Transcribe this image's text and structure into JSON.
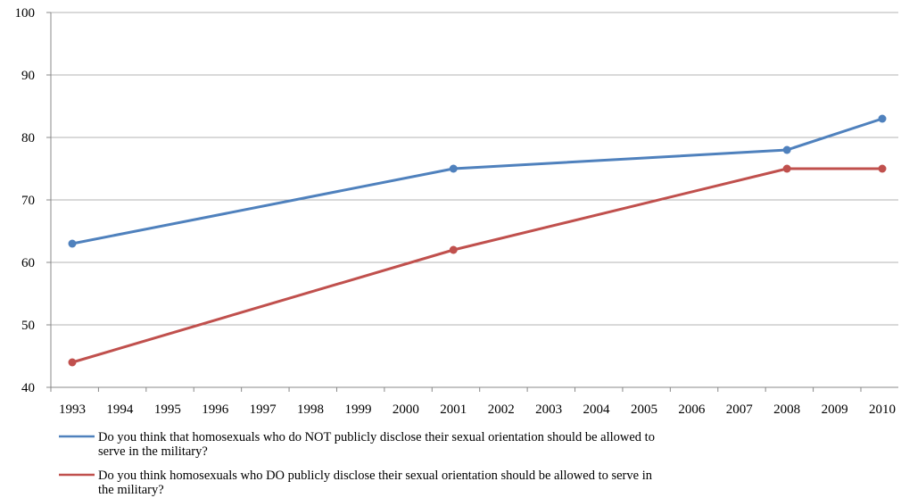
{
  "chart_data": {
    "type": "line",
    "categories": [
      "1993",
      "1994",
      "1995",
      "1996",
      "1997",
      "1998",
      "1999",
      "2000",
      "2001",
      "2002",
      "2003",
      "2004",
      "2005",
      "2006",
      "2007",
      "2008",
      "2009",
      "2010"
    ],
    "ylim": [
      40,
      100
    ],
    "y_ticks": [
      40,
      50,
      60,
      70,
      80,
      90,
      100
    ],
    "grid": "horizontal",
    "legend_position": "bottom",
    "series": [
      {
        "name": "Do you think that homosexuals who do NOT publicly disclose their sexual orientation should be allowed to serve in the military?",
        "legend_lines": [
          "Do you think that homosexuals who do NOT publicly disclose their sexual orientation should be allowed to",
          "serve in the military?"
        ],
        "color": "#4f81bd",
        "points": [
          {
            "x": "1993",
            "y": 63
          },
          {
            "x": "2001",
            "y": 75
          },
          {
            "x": "2008",
            "y": 78
          },
          {
            "x": "2010",
            "y": 83
          }
        ]
      },
      {
        "name": "Do you think homosexuals who DO publicly disclose their sexual orientation should be allowed to serve in the military?",
        "legend_lines": [
          "Do you think homosexuals who DO publicly disclose their sexual orientation should be allowed to serve in",
          "the military?"
        ],
        "color": "#c0504d",
        "points": [
          {
            "x": "1993",
            "y": 44
          },
          {
            "x": "2001",
            "y": 62
          },
          {
            "x": "2008",
            "y": 75
          },
          {
            "x": "2010",
            "y": 75
          }
        ]
      }
    ]
  }
}
